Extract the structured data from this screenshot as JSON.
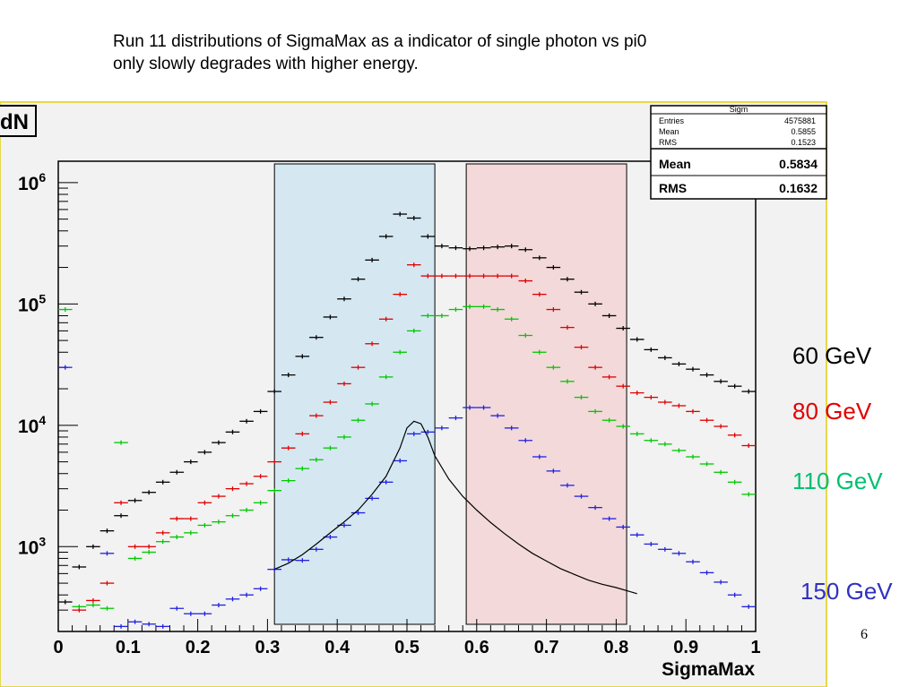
{
  "slide": {
    "title_line1": "Run 11 distributions of SigmaMax as a indicator of single photon vs pi0",
    "title_line2": "only slowly degrades with higher energy.",
    "page_number": "6"
  },
  "stats_box": {
    "name": "Sigm",
    "rows": [
      {
        "label": "Entries",
        "value": "4575881"
      },
      {
        "label": "Mean",
        "value": "0.5855"
      },
      {
        "label": "RMS",
        "value": "0.1523"
      }
    ],
    "big_rows": [
      {
        "label": "Mean",
        "value": "0.5834"
      },
      {
        "label": "RMS",
        "value": "0.1632"
      }
    ]
  },
  "y_axis_label_fragment": "dN",
  "energy_labels": [
    {
      "text": "60 GeV",
      "color": "#000000"
    },
    {
      "text": "80 GeV",
      "color": "#e00000"
    },
    {
      "text": "110 GeV",
      "color": "#00c070"
    },
    {
      "text": "150 GeV",
      "color": "#3030c0"
    }
  ],
  "chart_data": {
    "type": "scatter",
    "title": "",
    "xlabel": "SigmaMax",
    "ylabel": "dN",
    "xlim": [
      0,
      1
    ],
    "ylim": [
      200,
      1500000
    ],
    "y_scale": "log",
    "x_tick_labels": [
      "0",
      "0.1",
      "0.2",
      "0.3",
      "0.4",
      "0.5",
      "0.6",
      "0.7",
      "0.8",
      "0.9",
      "1"
    ],
    "y_tick_labels": [
      {
        "value": 1000,
        "base": "10",
        "exp": "3"
      },
      {
        "value": 10000,
        "base": "10",
        "exp": "4"
      },
      {
        "value": 100000,
        "base": "10",
        "exp": "5"
      },
      {
        "value": 1000000,
        "base": "10",
        "exp": "6"
      }
    ],
    "bin_width": 0.02,
    "regions": [
      {
        "x": [
          0.31,
          0.54
        ],
        "color": "#d5e8f2"
      },
      {
        "x": [
          0.585,
          0.815
        ],
        "color": "#f3d9da"
      }
    ],
    "series": [
      {
        "color": "#000000",
        "x": [
          0.01,
          0.03,
          0.05,
          0.07,
          0.09,
          0.11,
          0.13,
          0.15,
          0.17,
          0.19,
          0.21,
          0.23,
          0.25,
          0.27,
          0.29,
          0.31,
          0.33,
          0.35,
          0.37,
          0.39,
          0.41,
          0.43,
          0.45,
          0.47,
          0.49,
          0.51,
          0.53,
          0.55,
          0.57,
          0.59,
          0.61,
          0.63,
          0.65,
          0.67,
          0.69,
          0.71,
          0.73,
          0.75,
          0.77,
          0.79,
          0.81,
          0.83,
          0.85,
          0.87,
          0.89,
          0.91,
          0.93,
          0.95,
          0.97,
          0.99
        ],
        "y": [
          350,
          680,
          1000,
          1350,
          1800,
          2400,
          2800,
          3400,
          4100,
          5000,
          6000,
          7200,
          8800,
          10800,
          13000,
          19000,
          26000,
          37000,
          53000,
          78000,
          110000,
          160000,
          230000,
          360000,
          550000,
          510000,
          360000,
          300000,
          290000,
          285000,
          290000,
          295000,
          300000,
          280000,
          240000,
          200000,
          160000,
          125000,
          100000,
          80000,
          63000,
          51000,
          42000,
          36000,
          32000,
          29000,
          26000,
          23000,
          21000,
          19000
        ]
      },
      {
        "color": "#e00000",
        "x": [
          0.03,
          0.05,
          0.07,
          0.09,
          0.11,
          0.13,
          0.15,
          0.17,
          0.19,
          0.21,
          0.23,
          0.25,
          0.27,
          0.29,
          0.31,
          0.33,
          0.35,
          0.37,
          0.39,
          0.41,
          0.43,
          0.45,
          0.47,
          0.49,
          0.51,
          0.53,
          0.55,
          0.57,
          0.59,
          0.61,
          0.63,
          0.65,
          0.67,
          0.69,
          0.71,
          0.73,
          0.75,
          0.77,
          0.79,
          0.81,
          0.83,
          0.85,
          0.87,
          0.89,
          0.91,
          0.93,
          0.95,
          0.97,
          0.99
        ],
        "y": [
          300,
          360,
          500,
          2300,
          1000,
          1000,
          1300,
          1700,
          1700,
          2300,
          2600,
          3000,
          3300,
          3800,
          5000,
          6500,
          8500,
          12000,
          15500,
          22000,
          30000,
          47000,
          75000,
          120000,
          210000,
          170000,
          170000,
          170000,
          170000,
          170000,
          170000,
          170000,
          155000,
          120000,
          90000,
          64000,
          44000,
          30000,
          25000,
          21000,
          18500,
          17000,
          15500,
          14500,
          13000,
          11000,
          9800,
          8300,
          6800
        ]
      },
      {
        "color": "#00c800",
        "x": [
          0.01,
          0.03,
          0.05,
          0.07,
          0.09,
          0.11,
          0.13,
          0.15,
          0.17,
          0.19,
          0.21,
          0.23,
          0.25,
          0.27,
          0.29,
          0.31,
          0.33,
          0.35,
          0.37,
          0.39,
          0.41,
          0.43,
          0.45,
          0.47,
          0.49,
          0.51,
          0.53,
          0.55,
          0.57,
          0.59,
          0.61,
          0.63,
          0.65,
          0.67,
          0.69,
          0.71,
          0.73,
          0.75,
          0.77,
          0.79,
          0.81,
          0.83,
          0.85,
          0.87,
          0.89,
          0.91,
          0.93,
          0.95,
          0.97,
          0.99
        ],
        "y": [
          90000,
          320,
          330,
          310,
          7200,
          800,
          900,
          1100,
          1200,
          1300,
          1500,
          1600,
          1800,
          2000,
          2300,
          2900,
          3500,
          4400,
          5200,
          6500,
          8000,
          11000,
          15000,
          25000,
          40000,
          60000,
          80000,
          80000,
          90000,
          95000,
          95000,
          90000,
          75000,
          55000,
          40000,
          30000,
          23000,
          17000,
          13000,
          11000,
          9800,
          8500,
          7500,
          7000,
          6200,
          5500,
          4800,
          4100,
          3400,
          2700
        ]
      },
      {
        "color": "#2020e0",
        "x": [
          0.01,
          0.03,
          0.05,
          0.07,
          0.09,
          0.11,
          0.13,
          0.15,
          0.17,
          0.19,
          0.21,
          0.23,
          0.25,
          0.27,
          0.29,
          0.31,
          0.33,
          0.35,
          0.37,
          0.39,
          0.41,
          0.43,
          0.45,
          0.47,
          0.49,
          0.51,
          0.53,
          0.55,
          0.57,
          0.59,
          0.61,
          0.63,
          0.65,
          0.67,
          0.69,
          0.71,
          0.73,
          0.75,
          0.77,
          0.79,
          0.81,
          0.83,
          0.85,
          0.87,
          0.89,
          0.91,
          0.93,
          0.95,
          0.97,
          0.99
        ],
        "y": [
          30000,
          0,
          0,
          880,
          220,
          240,
          230,
          220,
          310,
          280,
          280,
          330,
          370,
          400,
          450,
          650,
          780,
          770,
          950,
          1200,
          1500,
          1900,
          2500,
          3400,
          5100,
          8500,
          8800,
          9500,
          11500,
          14000,
          14000,
          12000,
          9500,
          7500,
          5500,
          4200,
          3200,
          2600,
          2100,
          1700,
          1450,
          1250,
          1050,
          950,
          880,
          750,
          610,
          510,
          400,
          320
        ]
      },
      {
        "color": "#000000",
        "style": "line",
        "x": [
          0.31,
          0.33,
          0.35,
          0.37,
          0.39,
          0.41,
          0.43,
          0.45,
          0.47,
          0.49,
          0.5,
          0.51,
          0.52,
          0.53,
          0.54,
          0.56,
          0.58,
          0.6,
          0.62,
          0.64,
          0.66,
          0.68,
          0.7,
          0.72,
          0.74,
          0.76,
          0.78,
          0.8,
          0.82,
          0.83
        ],
        "y": [
          650,
          730,
          860,
          1050,
          1300,
          1600,
          2000,
          2700,
          3800,
          6500,
          9500,
          10800,
          10300,
          8000,
          5600,
          3600,
          2600,
          2000,
          1580,
          1280,
          1050,
          880,
          760,
          660,
          590,
          530,
          490,
          460,
          425,
          410
        ]
      }
    ]
  }
}
